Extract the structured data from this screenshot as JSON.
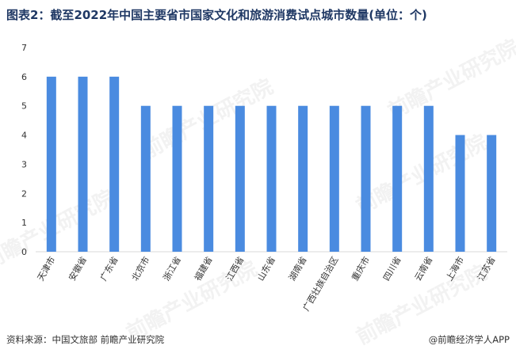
{
  "title": "图表2：截至2022年中国主要省市国家文化和旅游消费试点城市数量(单位：个)",
  "source": "资料来源：中国文旅部 前瞻产业研究院",
  "brand": "@前瞻经济学人APP",
  "watermark": "前瞻产业研究院",
  "colors": {
    "bar": "#4a8be0",
    "axis": "#d9d9d9",
    "title": "#1f3864"
  },
  "chart_data": {
    "type": "bar",
    "categories": [
      "天津市",
      "安徽省",
      "广东省",
      "北京市",
      "浙江省",
      "福建省",
      "江西省",
      "山东省",
      "湖南省",
      "广西壮族自治区",
      "重庆市",
      "四川省",
      "云南省",
      "上海市",
      "江苏省"
    ],
    "values": [
      6,
      6,
      6,
      5,
      5,
      5,
      5,
      5,
      5,
      5,
      5,
      5,
      5,
      4,
      4
    ],
    "yticks": [
      0,
      1,
      2,
      3,
      4,
      5,
      6,
      7
    ],
    "ylim": [
      0,
      7
    ],
    "grid": false,
    "title": "",
    "xlabel": "",
    "ylabel": ""
  }
}
